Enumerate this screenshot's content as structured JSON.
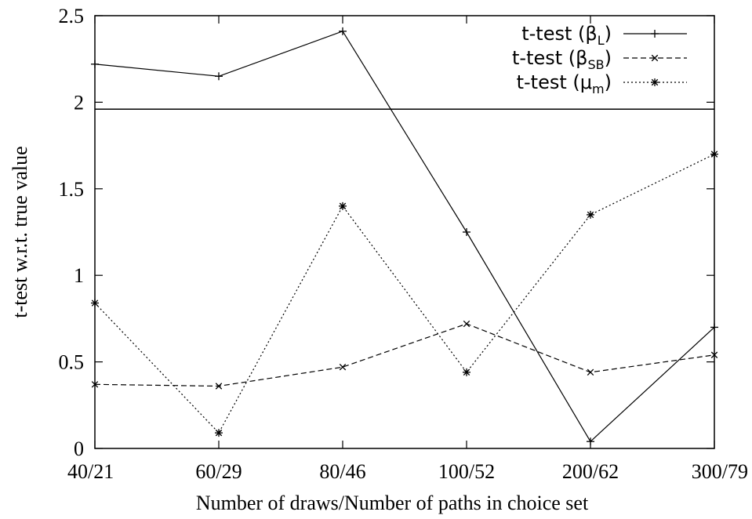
{
  "chart_data": {
    "type": "line",
    "title": "",
    "xlabel": "Number of draws/Number of paths in choice set",
    "ylabel": "t-test w.r.t. true value",
    "categories": [
      "40/21",
      "60/29",
      "80/46",
      "100/52",
      "200/62",
      "300/79"
    ],
    "ylim": [
      0,
      2.5
    ],
    "yticks": [
      "0",
      "0.5",
      "1",
      "1.5",
      "2",
      "2.5"
    ],
    "grid": false,
    "legend_position": "top-right",
    "reference_line": {
      "y": 1.96
    },
    "series": [
      {
        "name": "t-test (β_L)",
        "legend_main": "t-test (β",
        "legend_sub": "L",
        "marker": "+",
        "dash": "solid",
        "values": [
          2.22,
          2.15,
          2.41,
          1.25,
          0.04,
          0.7
        ]
      },
      {
        "name": "t-test (β_SB)",
        "legend_main": "t-test (β",
        "legend_sub": "SB",
        "marker": "x",
        "dash": "dashed",
        "values": [
          0.37,
          0.36,
          0.47,
          0.72,
          0.44,
          0.54
        ]
      },
      {
        "name": "t-test (μ_m)",
        "legend_main": "t-test (μ",
        "legend_sub": "m",
        "marker": "*",
        "dash": "dotted",
        "values": [
          0.84,
          0.09,
          1.4,
          0.44,
          1.35,
          1.7
        ]
      }
    ]
  }
}
